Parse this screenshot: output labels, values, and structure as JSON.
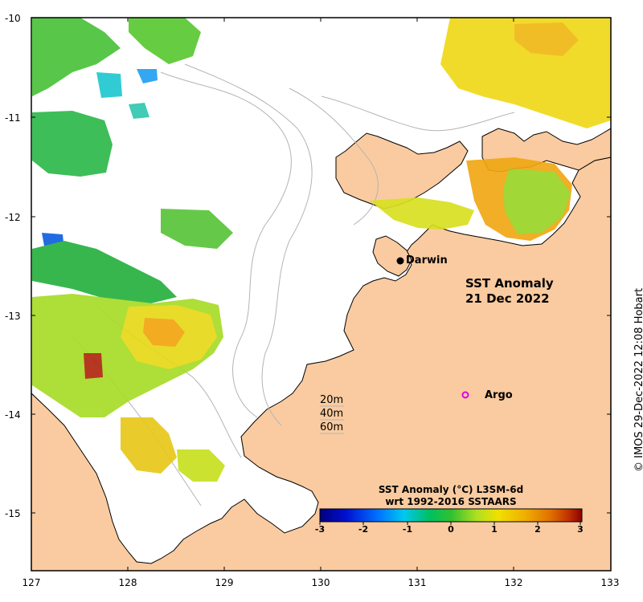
{
  "map": {
    "title_line1": "SST Anomaly",
    "title_line2": "21 Dec 2022",
    "y_ticks": [
      "-10",
      "-11",
      "-12",
      "-13",
      "-14",
      "-15"
    ],
    "x_ticks": [
      "127",
      "128",
      "129",
      "130",
      "131",
      "132",
      "133"
    ],
    "places": {
      "darwin": "Darwin",
      "argo": "Argo"
    },
    "depth_contours": [
      "20m",
      "40m",
      "60m"
    ],
    "colors": {
      "land": "#FACBA0",
      "no_data": "#FFFFFF",
      "contour": "#B4B4B4",
      "argo_marker": "#E000E0"
    }
  },
  "colorbar": {
    "title_line1": "SST Anomaly (°C) L3SM-6d",
    "title_line2": "wrt 1992-2016 SSTAARS",
    "ticks": [
      "-3",
      "-2",
      "-1",
      "0",
      "1",
      "2",
      "3"
    ],
    "colors": [
      "#00007F",
      "#0010D0",
      "#0070FF",
      "#00C8F0",
      "#00C060",
      "#30C030",
      "#B0E020",
      "#F0E000",
      "#F0B000",
      "#E07000",
      "#C03000",
      "#8B0000"
    ]
  },
  "credit": "© IMOS 29-Dec-2022 12:08 Hobart"
}
